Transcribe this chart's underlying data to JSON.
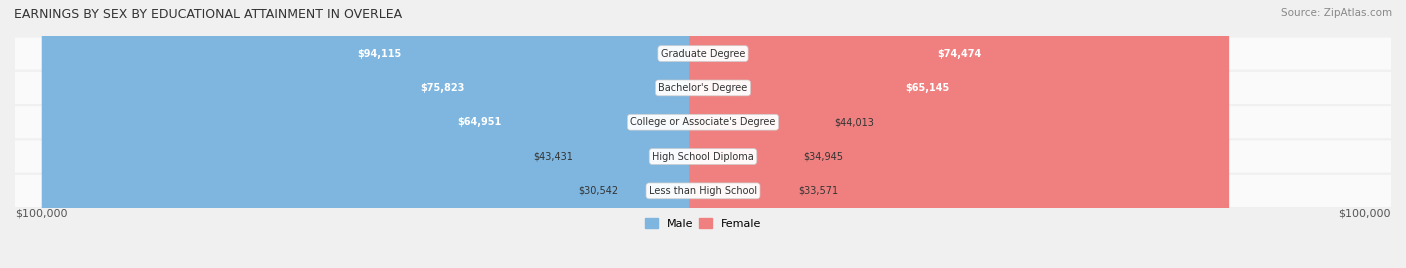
{
  "title": "EARNINGS BY SEX BY EDUCATIONAL ATTAINMENT IN OVERLEA",
  "source": "Source: ZipAtlas.com",
  "categories": [
    "Less than High School",
    "High School Diploma",
    "College or Associate's Degree",
    "Bachelor's Degree",
    "Graduate Degree"
  ],
  "male_values": [
    30542,
    43431,
    64951,
    75823,
    94115
  ],
  "female_values": [
    33571,
    34945,
    44013,
    65145,
    74474
  ],
  "male_color": "#7EB6E0",
  "female_color": "#F08080",
  "male_label": "Male",
  "female_label": "Female",
  "x_max": 100000,
  "x_label_left": "$100,000",
  "x_label_right": "$100,000",
  "bg_color": "#f0f0f0",
  "bar_bg_color": "#e8e8e8",
  "title_fontsize": 9,
  "source_fontsize": 7.5,
  "value_fontsize": 7,
  "category_fontsize": 7,
  "legend_fontsize": 8
}
